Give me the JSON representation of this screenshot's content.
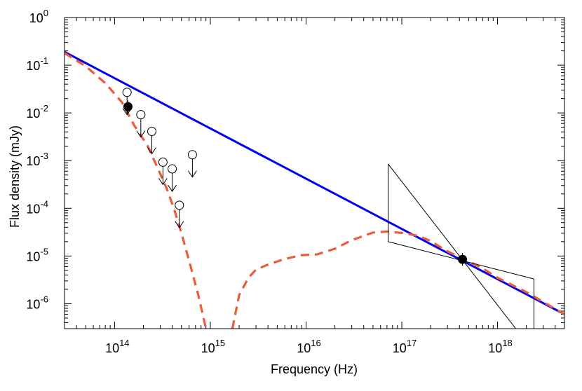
{
  "chart_data": {
    "type": "scatter",
    "xlabel": "Frequency (Hz)",
    "ylabel": "Flux density (mJy)",
    "xscale": "log",
    "yscale": "log",
    "xlim": [
      30000000000000.0,
      5e+18
    ],
    "ylim": [
      3e-07,
      1
    ],
    "grid": false,
    "x_ticks": [
      {
        "base": "10",
        "exp": "14",
        "value": 100000000000000.0
      },
      {
        "base": "10",
        "exp": "15",
        "value": 1000000000000000.0
      },
      {
        "base": "10",
        "exp": "16",
        "value": 1e+16
      },
      {
        "base": "10",
        "exp": "17",
        "value": 1e+17
      },
      {
        "base": "10",
        "exp": "18",
        "value": 1e+18
      }
    ],
    "y_ticks": [
      {
        "base": "10",
        "exp": "0",
        "value": 1
      },
      {
        "base": "10",
        "exp": "-1",
        "value": 0.1
      },
      {
        "base": "10",
        "exp": "-2",
        "value": 0.01
      },
      {
        "base": "10",
        "exp": "-3",
        "value": 0.001
      },
      {
        "base": "10",
        "exp": "-4",
        "value": 0.0001
      },
      {
        "base": "10",
        "exp": "-5",
        "value": 1e-05
      },
      {
        "base": "10",
        "exp": "-6",
        "value": 1e-06
      }
    ],
    "series": [
      {
        "style": "solid-line",
        "color": "#0000ee",
        "x": [
          30000000000000.0,
          5e+18
        ],
        "y": [
          0.19,
          6e-07
        ]
      },
      {
        "style": "dashed-line",
        "color": "#f05a3c",
        "x": [
          30000000000000.0,
          50000000000000.0,
          80000000000000.0,
          120000000000000.0,
          160000000000000.0,
          220000000000000.0,
          280000000000000.0,
          350000000000000.0,
          420000000000000.0,
          500000000000000.0,
          600000000000000.0,
          750000000000000.0,
          900000000000000.0,
          null,
          1700000000000000.0,
          2000000000000000.0,
          2500000000000000.0,
          3000000000000000.0,
          4000000000000000.0,
          6000000000000000.0,
          9000000000000000.0,
          1.3e+16,
          2e+16,
          3e+16,
          5e+16,
          7e+16,
          1e+17,
          1.5e+17,
          2e+17,
          3e+17,
          4.5e+17,
          7e+17,
          1e+18,
          2e+18,
          5e+18
        ],
        "y": [
          0.18,
          0.095,
          0.042,
          0.0165,
          0.0055,
          0.0021,
          0.00072,
          0.00026,
          9.5e-05,
          3e-05,
          8e-06,
          1.5e-06,
          3e-07,
          null,
          3e-07,
          1.5e-06,
          3.5e-06,
          5.2e-06,
          6.6e-06,
          8.7e-06,
          1.04e-05,
          1.08e-05,
          1.42e-05,
          2.15e-05,
          3.1e-05,
          3.25e-05,
          3.05e-05,
          2.65e-05,
          2.05e-05,
          1.25e-05,
          8.5e-06,
          5.5e-06,
          3.5e-06,
          1.75e-06,
          6e-07
        ]
      }
    ],
    "points": [
      {
        "kind": "detection",
        "x": 138000000000000.0,
        "y": 0.0135
      },
      {
        "kind": "detection",
        "x": 4.3e+17,
        "y": 8.5e-06
      }
    ],
    "upper_limits": [
      {
        "x": 135000000000000.0,
        "y": 0.027
      },
      {
        "x": 188000000000000.0,
        "y": 0.0092
      },
      {
        "x": 245000000000000.0,
        "y": 0.0041
      },
      {
        "x": 320000000000000.0,
        "y": 0.00093
      },
      {
        "x": 400000000000000.0,
        "y": 0.00067
      },
      {
        "x": 475000000000000.0,
        "y": 0.000116
      },
      {
        "x": 650000000000000.0,
        "y": 0.00133
      }
    ],
    "bowtie": {
      "pivot_x": 4.3e+17,
      "pivot_y": 8.5e-06,
      "x_range": [
        7.2e+16,
        2.4e+18
      ],
      "steep_slope_y": [
        0.00085,
        3e-07
      ],
      "flat_slope_y": [
        2e-05,
        3.3e-06
      ],
      "steep_end_x": 1.55e+18
    }
  }
}
